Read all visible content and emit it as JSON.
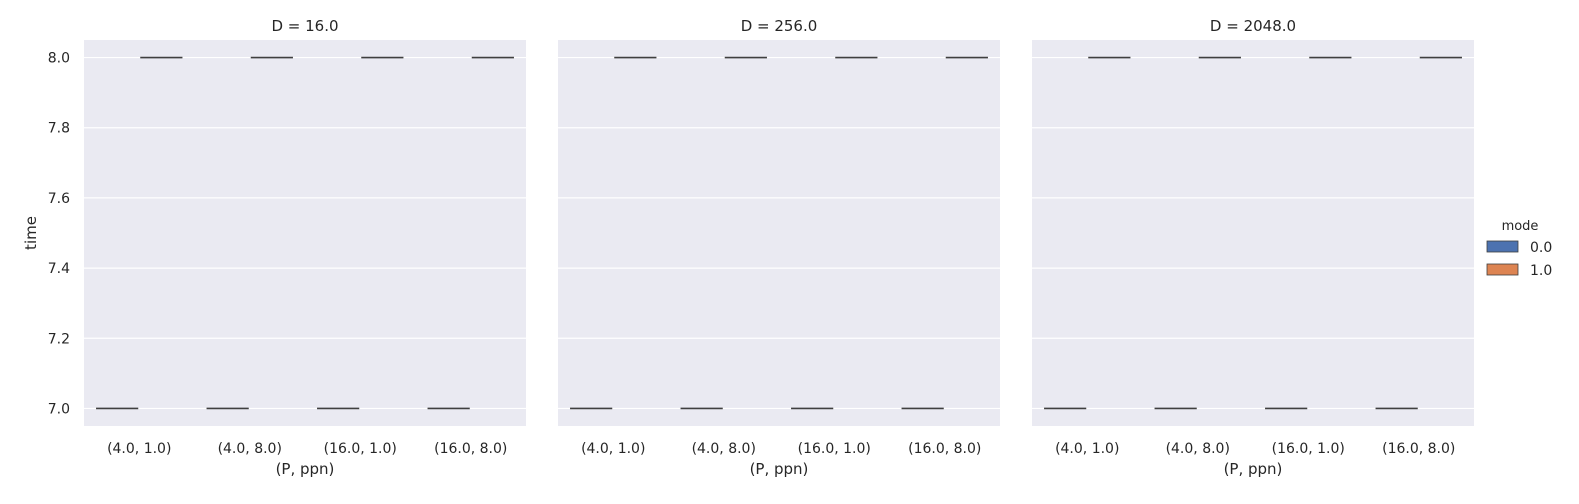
{
  "chart_data": {
    "type": "box",
    "x_label": "(P, ppn)",
    "y_label": "time",
    "ylim": [
      6.95,
      8.05
    ],
    "y_ticks": [
      "7.0",
      "7.2",
      "7.4",
      "7.6",
      "7.8",
      "8.0"
    ],
    "categories": [
      "(4.0, 1.0)",
      "(4.0, 8.0)",
      "(16.0, 1.0)",
      "(16.0, 8.0)"
    ],
    "legend": {
      "title": "mode",
      "placement": "right",
      "entries": [
        {
          "label": "0.0",
          "color": "#4c72b0"
        },
        {
          "label": "1.0",
          "color": "#dd8452"
        }
      ]
    },
    "grid": true,
    "background_color": "#eaeaf2",
    "panels": [
      {
        "title": "D = 16.0",
        "series": [
          {
            "mode": "0.0",
            "values": [
              7.0,
              7.0,
              7.0,
              7.0
            ]
          },
          {
            "mode": "1.0",
            "values": [
              8.0,
              8.0,
              8.0,
              8.0
            ]
          }
        ]
      },
      {
        "title": "D = 256.0",
        "series": [
          {
            "mode": "0.0",
            "values": [
              7.0,
              7.0,
              7.0,
              7.0
            ]
          },
          {
            "mode": "1.0",
            "values": [
              8.0,
              8.0,
              8.0,
              8.0
            ]
          }
        ]
      },
      {
        "title": "D = 2048.0",
        "series": [
          {
            "mode": "0.0",
            "values": [
              7.0,
              7.0,
              7.0,
              7.0
            ]
          },
          {
            "mode": "1.0",
            "values": [
              8.0,
              8.0,
              8.0,
              8.0
            ]
          }
        ]
      }
    ]
  }
}
